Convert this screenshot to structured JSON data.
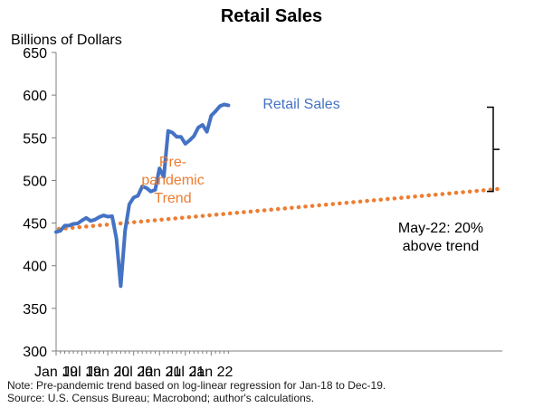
{
  "chart_data": {
    "type": "line",
    "title": "Retail Sales",
    "ylabel": "Billions of Dollars",
    "xlabel": "",
    "ylim": [
      300,
      650
    ],
    "yticks": [
      300,
      350,
      400,
      450,
      500,
      550,
      600,
      650
    ],
    "x_start": "2019-01",
    "x_end": "2022-06",
    "xtick_labels": [
      "Jan 19",
      "Jul 19",
      "Jan 20",
      "Jul 20",
      "Jan 21",
      "Jul 21",
      "Jan 22"
    ],
    "grid": false,
    "series": [
      {
        "name": "Retail Sales",
        "label": "Retail Sales",
        "color": "#4472c4",
        "style": "solid",
        "values": [
          439.5,
          441,
          447,
          447,
          449,
          449.5,
          453,
          456,
          452.5,
          454,
          457,
          459,
          457.5,
          458,
          432,
          376,
          441,
          472,
          480,
          482,
          493,
          491,
          487,
          489,
          514,
          504,
          558,
          556,
          551,
          551,
          543,
          547,
          552,
          562,
          565,
          557,
          576,
          581,
          587,
          589,
          588
        ]
      },
      {
        "name": "Pre-pandemic Trend",
        "label_lines": [
          "Pre-",
          "pandemic",
          "Trend"
        ],
        "color": "#ed7d31",
        "style": "dotted",
        "start": 443,
        "end": 490
      }
    ],
    "annotations": {
      "gap_label_lines": [
        "May-22: 20%",
        "above trend"
      ]
    },
    "notes": [
      "Note: Pre-pandemic trend based on log-linear regression for Jan-18 to Dec-19.",
      "Source: U.S. Census Bureau; Macrobond; author's calculations."
    ]
  }
}
